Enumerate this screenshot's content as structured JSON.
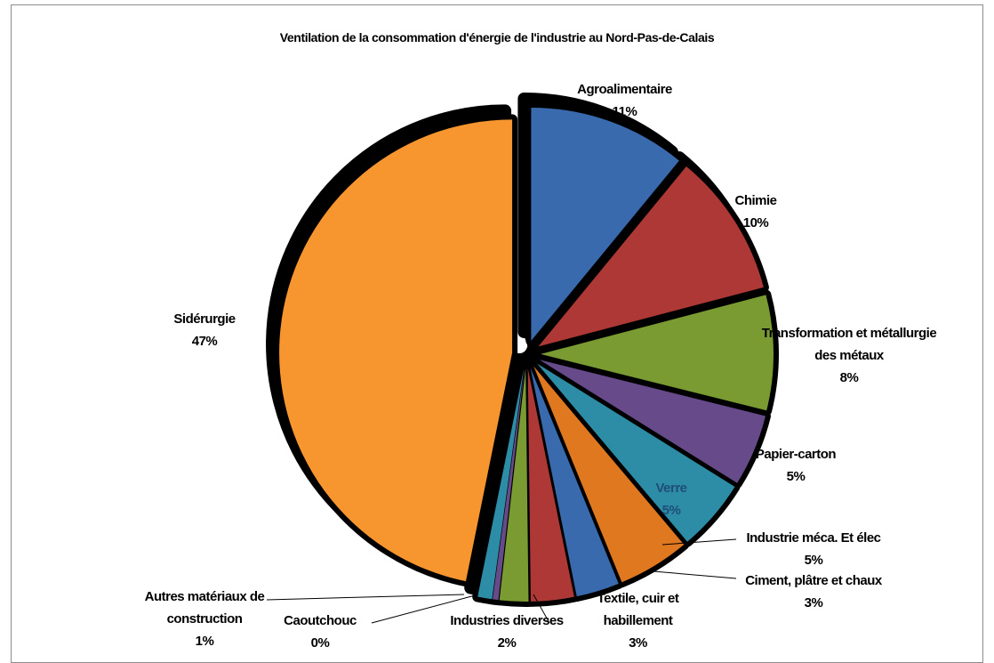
{
  "chart_data": {
    "type": "pie",
    "title": "Ventilation de la consommation d'énergie de l'industrie au Nord-Pas-de-Calais",
    "categories": [
      "Agroalimentaire",
      "Chimie",
      "Transformation et métallurgie des métaux",
      "Papier-carton",
      "Verre",
      "Industrie méca. Et élec",
      "Ciment, plâtre et chaux",
      "Textile, cuir et habillement",
      "Industries diverses",
      "Caoutchouc",
      "Autres matériaux de construction",
      "Sidérurgie"
    ],
    "values": [
      11,
      10,
      8,
      5,
      5,
      5,
      3,
      3,
      2,
      0.4,
      1,
      47
    ],
    "value_labels": [
      "11%",
      "10%",
      "8%",
      "5%",
      "5%",
      "5%",
      "3%",
      "3%",
      "2%",
      "0%",
      "1%",
      "47%"
    ],
    "colors": [
      "#3a6aae",
      "#ad3835",
      "#7a9b32",
      "#664a8a",
      "#2d8ca6",
      "#e0781f",
      "#3a6aae",
      "#ad3835",
      "#7a9b32",
      "#664a8a",
      "#2d8ca6",
      "#f7952f"
    ]
  }
}
